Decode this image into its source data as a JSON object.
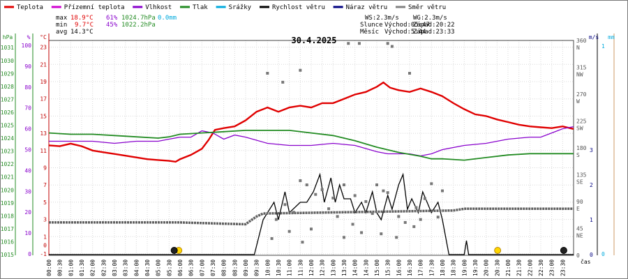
{
  "chart_data": {
    "type": "line",
    "title": "30.4.2025",
    "x_label": "čas",
    "legend": [
      {
        "name": "Teplota",
        "color": "#e00000"
      },
      {
        "name": "Přízemní teplota",
        "color": "#d000d0"
      },
      {
        "name": "Vlhkost",
        "color": "#8800cc"
      },
      {
        "name": "Tlak",
        "color": "#228b22"
      },
      {
        "name": "Srážky",
        "color": "#00aadd"
      },
      {
        "name": "Rychlost větru",
        "color": "#000000"
      },
      {
        "name": "Náraz větru",
        "color": "#000080"
      },
      {
        "name": "Směr větru",
        "color": "#808080"
      }
    ],
    "stats": {
      "max": {
        "label": "max",
        "temp": "18.9°C",
        "humidity": "61%",
        "pressure": "1024.7hPa",
        "rain": "0.0mm"
      },
      "min": {
        "label": "min",
        "temp": "9.7°C",
        "humidity": "45%",
        "pressure": "1022.2hPa"
      },
      "avg": {
        "label": "avg",
        "temp": "14.3°C"
      }
    },
    "wind_info": {
      "ws": "WS:2.3m/s",
      "wg": "WG:2.3m/s",
      "sun_label": "Slunce",
      "sunrise": "Východ:05:47",
      "sunset": "Západ:20:22",
      "moon_label": "Měsíc",
      "moonrise": "Východ:5:44",
      "moonset": "Západ:23:33"
    },
    "axes": {
      "hpa": {
        "label": "hPa",
        "ticks": [
          "1031",
          "1030",
          "1029",
          "1028",
          "1027",
          "1026",
          "1025",
          "1024",
          "1023",
          "1022",
          "1021",
          "1020",
          "1019",
          "1018",
          "1017",
          "1016",
          "1015"
        ]
      },
      "pct": {
        "label": "%",
        "ticks": [
          "100",
          "90",
          "80",
          "70",
          "60",
          "50",
          "40",
          "30",
          "20",
          "10",
          "0"
        ]
      },
      "degc": {
        "label": "°C",
        "ticks": [
          "23",
          "21",
          "19",
          "17",
          "15",
          "13",
          "11",
          "9",
          "7",
          "5",
          "3",
          "1",
          "-1"
        ],
        "zero": "0"
      },
      "dir": {
        "ticks": [
          "360",
          "315",
          "270",
          "225",
          "180",
          "135",
          "90",
          "45",
          "0"
        ],
        "names": [
          "N",
          "NW",
          "W",
          "SW",
          "S",
          "SE",
          "E",
          "NE",
          ""
        ]
      },
      "ms": {
        "label": "m/s",
        "ticks": [
          "3",
          "2",
          "1",
          "0"
        ]
      },
      "rain": {
        "label": "mm",
        "ticks": [
          "1",
          "0"
        ]
      }
    },
    "time_labels": [
      "00:00",
      "00:30",
      "01:00",
      "01:30",
      "02:00",
      "02:30",
      "03:00",
      "03:30",
      "04:00",
      "04:30",
      "05:00",
      "05:30",
      "06:00",
      "06:30",
      "07:00",
      "07:30",
      "08:00",
      "08:30",
      "09:00",
      "09:30",
      "10:00",
      "10:30",
      "11:00",
      "11:30",
      "12:00",
      "12:30",
      "13:00",
      "13:30",
      "14:00",
      "14:30",
      "15:00",
      "15:30",
      "16:00",
      "16:30",
      "17:00",
      "17:30",
      "18:00",
      "18:30",
      "19:00",
      "19:30",
      "20:00",
      "20:30",
      "21:00",
      "21:30",
      "22:00",
      "22:30",
      "23:00",
      "23:30"
    ],
    "series": [
      {
        "name": "Teplota",
        "unit": "°C",
        "points": [
          [
            0,
            11.6
          ],
          [
            0.5,
            11.5
          ],
          [
            1,
            11.8
          ],
          [
            1.5,
            11.5
          ],
          [
            2,
            11.0
          ],
          [
            2.5,
            10.8
          ],
          [
            3,
            10.6
          ],
          [
            3.5,
            10.4
          ],
          [
            4,
            10.2
          ],
          [
            4.5,
            10.0
          ],
          [
            5,
            9.9
          ],
          [
            5.5,
            9.8
          ],
          [
            5.8,
            9.7
          ],
          [
            6,
            10.0
          ],
          [
            6.5,
            10.5
          ],
          [
            7,
            11.2
          ],
          [
            7.3,
            12.2
          ],
          [
            7.6,
            13.4
          ],
          [
            8,
            13.6
          ],
          [
            8.5,
            13.8
          ],
          [
            9,
            14.5
          ],
          [
            9.5,
            15.5
          ],
          [
            10,
            16.0
          ],
          [
            10.5,
            15.5
          ],
          [
            11,
            16.0
          ],
          [
            11.5,
            16.2
          ],
          [
            12,
            16.0
          ],
          [
            12.5,
            16.5
          ],
          [
            13,
            16.5
          ],
          [
            13.5,
            17.0
          ],
          [
            14,
            17.5
          ],
          [
            14.5,
            17.8
          ],
          [
            15,
            18.4
          ],
          [
            15.3,
            18.9
          ],
          [
            15.6,
            18.3
          ],
          [
            16,
            18.0
          ],
          [
            16.5,
            17.8
          ],
          [
            17,
            18.2
          ],
          [
            17.5,
            17.8
          ],
          [
            18,
            17.3
          ],
          [
            18.5,
            16.5
          ],
          [
            19,
            15.8
          ],
          [
            19.5,
            15.2
          ],
          [
            20,
            15.0
          ],
          [
            20.5,
            14.6
          ],
          [
            21,
            14.3
          ],
          [
            21.5,
            14.0
          ],
          [
            22,
            13.8
          ],
          [
            22.5,
            13.7
          ],
          [
            23,
            13.6
          ],
          [
            23.5,
            13.8
          ],
          [
            24,
            13.5
          ]
        ]
      },
      {
        "name": "Vlhkost",
        "unit": "%",
        "points": [
          [
            0,
            54
          ],
          [
            1,
            54
          ],
          [
            2,
            54
          ],
          [
            3,
            53
          ],
          [
            4,
            54
          ],
          [
            5,
            54
          ],
          [
            5.5,
            55
          ],
          [
            6,
            56
          ],
          [
            6.5,
            56
          ],
          [
            7,
            59
          ],
          [
            7.5,
            58
          ],
          [
            8,
            55
          ],
          [
            8.5,
            57
          ],
          [
            9,
            56
          ],
          [
            10,
            53
          ],
          [
            11,
            52
          ],
          [
            12,
            52
          ],
          [
            13,
            53
          ],
          [
            14,
            52
          ],
          [
            15,
            49
          ],
          [
            15.5,
            48
          ],
          [
            16,
            48
          ],
          [
            16.5,
            48
          ],
          [
            17,
            47
          ],
          [
            17.5,
            48
          ],
          [
            18,
            50
          ],
          [
            19,
            52
          ],
          [
            20,
            53
          ],
          [
            21,
            55
          ],
          [
            22,
            56
          ],
          [
            22.5,
            56
          ],
          [
            23,
            58
          ],
          [
            23.5,
            60
          ],
          [
            24,
            61
          ]
        ]
      },
      {
        "name": "Tlak",
        "unit": "hPa",
        "points": [
          [
            0,
            1024.4
          ],
          [
            1,
            1024.3
          ],
          [
            2,
            1024.3
          ],
          [
            3,
            1024.2
          ],
          [
            4,
            1024.1
          ],
          [
            5,
            1024.0
          ],
          [
            5.5,
            1024.1
          ],
          [
            6,
            1024.3
          ],
          [
            7,
            1024.4
          ],
          [
            8,
            1024.5
          ],
          [
            9,
            1024.6
          ],
          [
            10,
            1024.6
          ],
          [
            11,
            1024.6
          ],
          [
            12,
            1024.4
          ],
          [
            13,
            1024.2
          ],
          [
            14,
            1023.8
          ],
          [
            15,
            1023.3
          ],
          [
            16,
            1022.9
          ],
          [
            17,
            1022.6
          ],
          [
            17.5,
            1022.4
          ],
          [
            18,
            1022.4
          ],
          [
            19,
            1022.3
          ],
          [
            20,
            1022.5
          ],
          [
            21,
            1022.7
          ],
          [
            22,
            1022.8
          ],
          [
            23,
            1022.8
          ],
          [
            24,
            1022.8
          ]
        ]
      },
      {
        "name": "Rychlost větru",
        "unit": "m/s",
        "points": [
          [
            0,
            0
          ],
          [
            9.4,
            0
          ],
          [
            9.8,
            1.0
          ],
          [
            10.3,
            1.5
          ],
          [
            10.5,
            1.0
          ],
          [
            10.8,
            1.8
          ],
          [
            11.0,
            1.2
          ],
          [
            11.5,
            1.5
          ],
          [
            11.8,
            1.5
          ],
          [
            12.1,
            1.8
          ],
          [
            12.4,
            2.3
          ],
          [
            12.6,
            1.5
          ],
          [
            12.9,
            2.2
          ],
          [
            13.1,
            1.5
          ],
          [
            13.3,
            2.0
          ],
          [
            13.5,
            1.6
          ],
          [
            13.8,
            1.6
          ],
          [
            14.0,
            1.2
          ],
          [
            14.3,
            1.5
          ],
          [
            14.5,
            1.2
          ],
          [
            14.8,
            1.8
          ],
          [
            15.0,
            1.2
          ],
          [
            15.2,
            1.0
          ],
          [
            15.5,
            1.7
          ],
          [
            15.7,
            1.3
          ],
          [
            16.0,
            2.0
          ],
          [
            16.2,
            2.3
          ],
          [
            16.4,
            1.3
          ],
          [
            16.6,
            1.6
          ],
          [
            16.9,
            1.2
          ],
          [
            17.1,
            1.8
          ],
          [
            17.3,
            1.5
          ],
          [
            17.5,
            1.2
          ],
          [
            17.8,
            1.5
          ],
          [
            18.0,
            1.0
          ],
          [
            18.3,
            0
          ],
          [
            19,
            0
          ],
          [
            19.1,
            0.4
          ],
          [
            19.2,
            0
          ],
          [
            24,
            0
          ]
        ]
      },
      {
        "name": "Směr větru",
        "unit": "°",
        "points": [
          [
            0,
            55
          ],
          [
            1,
            55
          ],
          [
            2,
            55
          ],
          [
            3,
            55
          ],
          [
            4,
            55
          ],
          [
            5,
            55
          ],
          [
            6,
            55
          ],
          [
            7,
            54
          ],
          [
            8,
            53
          ],
          [
            9,
            52
          ],
          [
            9.3,
            60
          ],
          [
            9.5,
            65
          ],
          [
            9.8,
            70
          ],
          [
            18.5,
            75
          ],
          [
            19,
            78
          ],
          [
            20,
            78
          ],
          [
            21,
            78
          ],
          [
            22,
            78
          ],
          [
            23,
            78
          ],
          [
            24,
            78
          ]
        ]
      }
    ],
    "direction_scatter": [
      [
        10.0,
        305
      ],
      [
        10.7,
        290
      ],
      [
        11.5,
        310
      ],
      [
        11.5,
        125
      ],
      [
        11.8,
        118
      ],
      [
        12.2,
        102
      ],
      [
        12.5,
        110
      ],
      [
        13.0,
        96
      ],
      [
        13.5,
        118
      ],
      [
        14.0,
        100
      ],
      [
        14.5,
        90
      ],
      [
        15.0,
        118
      ],
      [
        15.3,
        108
      ],
      [
        15.5,
        105
      ],
      [
        15.5,
        355
      ],
      [
        15.7,
        350
      ],
      [
        13.7,
        355
      ],
      [
        14.2,
        355
      ],
      [
        16.5,
        305
      ],
      [
        16.8,
        80
      ],
      [
        17.2,
        95
      ],
      [
        17.5,
        120
      ],
      [
        18.0,
        108
      ],
      [
        10.4,
        60
      ],
      [
        10.8,
        85
      ],
      [
        11.2,
        72
      ],
      [
        12.8,
        78
      ],
      [
        13.2,
        65
      ],
      [
        14.8,
        70
      ],
      [
        16.0,
        65
      ],
      [
        16.3,
        55
      ],
      [
        17.0,
        60
      ],
      [
        17.8,
        64
      ],
      [
        11.0,
        40
      ],
      [
        12.0,
        44
      ],
      [
        13.9,
        52
      ],
      [
        15.2,
        36
      ],
      [
        15.9,
        30
      ],
      [
        16.7,
        48
      ],
      [
        10.2,
        28
      ],
      [
        11.6,
        22
      ],
      [
        13.5,
        30
      ],
      [
        14.3,
        38
      ]
    ],
    "markers": {
      "sunrise": "05:47",
      "sunset": "20:22",
      "moonrise": "05:44",
      "moonset": "23:33"
    }
  }
}
